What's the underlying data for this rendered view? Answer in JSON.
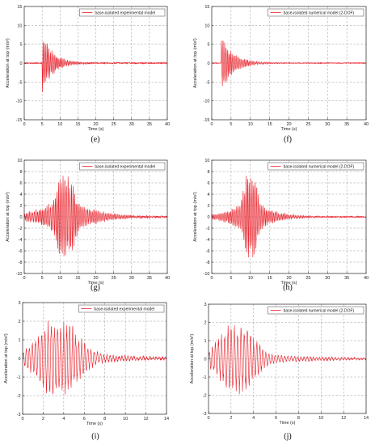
{
  "figure": {
    "line_color": "#e8202a",
    "panels": [
      {
        "caption": "(e)",
        "chart_data": {
          "type": "line",
          "xlabel": "Time (s)",
          "ylabel": "Acceleration at top (m/s²)",
          "xlim": [
            0,
            40
          ],
          "ylim": [
            -15,
            15
          ],
          "xticks": [
            0,
            5,
            10,
            15,
            20,
            25,
            30,
            35,
            40
          ],
          "yticks": [
            -15,
            -10,
            -5,
            0,
            5,
            10,
            15
          ],
          "grid": true,
          "legend_position": "top-right",
          "series": [
            {
              "name": "base-isolated experimental model",
              "color": "#e8202a"
            }
          ],
          "signal": {
            "onset": 5.0,
            "peak": 8.5,
            "decay": 0.32,
            "period": 0.4,
            "duration": 40,
            "dt": 0.05,
            "noise": 0.15
          }
        }
      },
      {
        "caption": "(f)",
        "chart_data": {
          "type": "line",
          "xlabel": "Time (s)",
          "ylabel": "Acceleration at top (m/s²)",
          "xlim": [
            0,
            40
          ],
          "ylim": [
            -15,
            15
          ],
          "xticks": [
            0,
            5,
            10,
            15,
            20,
            25,
            30,
            35,
            40
          ],
          "yticks": [
            -15,
            -10,
            -5,
            0,
            5,
            10,
            15
          ],
          "grid": true,
          "legend_position": "top-right",
          "series": [
            {
              "name": "base-isolated numerical model (2-DOF)",
              "color": "#e8202a"
            }
          ],
          "signal": {
            "onset": 2.5,
            "peak": 7.5,
            "decay": 0.3,
            "period": 0.4,
            "duration": 40,
            "dt": 0.05,
            "noise": 0.1
          }
        }
      },
      {
        "caption": "(g)",
        "chart_data": {
          "type": "line",
          "xlabel": "Time (s)",
          "ylabel": "Acceleration at top (m/s²)",
          "xlim": [
            0,
            40
          ],
          "ylim": [
            -10,
            10
          ],
          "xticks": [
            0,
            5,
            10,
            15,
            20,
            25,
            30,
            35,
            40
          ],
          "yticks": [
            -10,
            -8,
            -6,
            -4,
            -2,
            0,
            2,
            4,
            6,
            8,
            10
          ],
          "grid": true,
          "legend_position": "top-right",
          "series": [
            {
              "name": "base-isolated experimental model",
              "color": "#e8202a"
            }
          ],
          "signal": {
            "center": 11.5,
            "peak": 7.5,
            "width": 2.2,
            "period": 0.45,
            "duration": 40,
            "dt": 0.05,
            "tail": 0.6,
            "noise": 0.15
          }
        }
      },
      {
        "caption": "(h)",
        "chart_data": {
          "type": "line",
          "xlabel": "Time (s)",
          "ylabel": "Acceleration at top (m/s²)",
          "xlim": [
            0,
            40
          ],
          "ylim": [
            -10,
            10
          ],
          "xticks": [
            0,
            5,
            10,
            15,
            20,
            25,
            30,
            35,
            40
          ],
          "yticks": [
            -10,
            -8,
            -6,
            -4,
            -2,
            0,
            2,
            4,
            6,
            8,
            10
          ],
          "grid": true,
          "legend_position": "top-right",
          "series": [
            {
              "name": "base-isolated numerical model (2-DOF)",
              "color": "#e8202a"
            }
          ],
          "signal": {
            "center": 10.0,
            "peak": 8.0,
            "width": 1.6,
            "period": 0.4,
            "duration": 40,
            "dt": 0.05,
            "tail": 0.5,
            "noise": 0.1
          }
        }
      },
      {
        "caption": "(i)",
        "chart_data": {
          "type": "line",
          "xlabel": "Time (s)",
          "ylabel": "Acceleration at top (m/s²)",
          "xlim": [
            0,
            14
          ],
          "ylim": [
            -3,
            3
          ],
          "xticks": [
            0,
            2,
            4,
            6,
            8,
            10,
            12,
            14
          ],
          "yticks": [
            -3,
            -2,
            -1,
            0,
            1,
            2,
            3
          ],
          "grid": true,
          "legend_position": "top-right",
          "series": [
            {
              "name": "base-isolated experimental model",
              "color": "#e8202a"
            }
          ],
          "signal": {
            "center": 3.5,
            "peak": 2.1,
            "width": 2.4,
            "period": 0.3,
            "duration": 14,
            "dt": 0.02,
            "tail": 0.15,
            "noise": 0.06
          }
        }
      },
      {
        "caption": "(j)",
        "chart_data": {
          "type": "line",
          "xlabel": "Time (s)",
          "ylabel": "Acceleration at top (m/s²)",
          "xlim": [
            0,
            14
          ],
          "ylim": [
            -3,
            3
          ],
          "xticks": [
            0,
            2,
            4,
            6,
            8,
            10,
            12,
            14
          ],
          "yticks": [
            -3,
            -2,
            -1,
            0,
            1,
            2,
            3
          ],
          "grid": true,
          "legend_position": "top-right",
          "series": [
            {
              "name": "base-isolated numerical model (2-DOF)",
              "color": "#e8202a"
            }
          ],
          "signal": {
            "center": 2.5,
            "peak": 2.0,
            "width": 1.8,
            "period": 0.28,
            "duration": 14,
            "dt": 0.02,
            "tail": 0.2,
            "noise": 0.04
          }
        }
      }
    ]
  }
}
